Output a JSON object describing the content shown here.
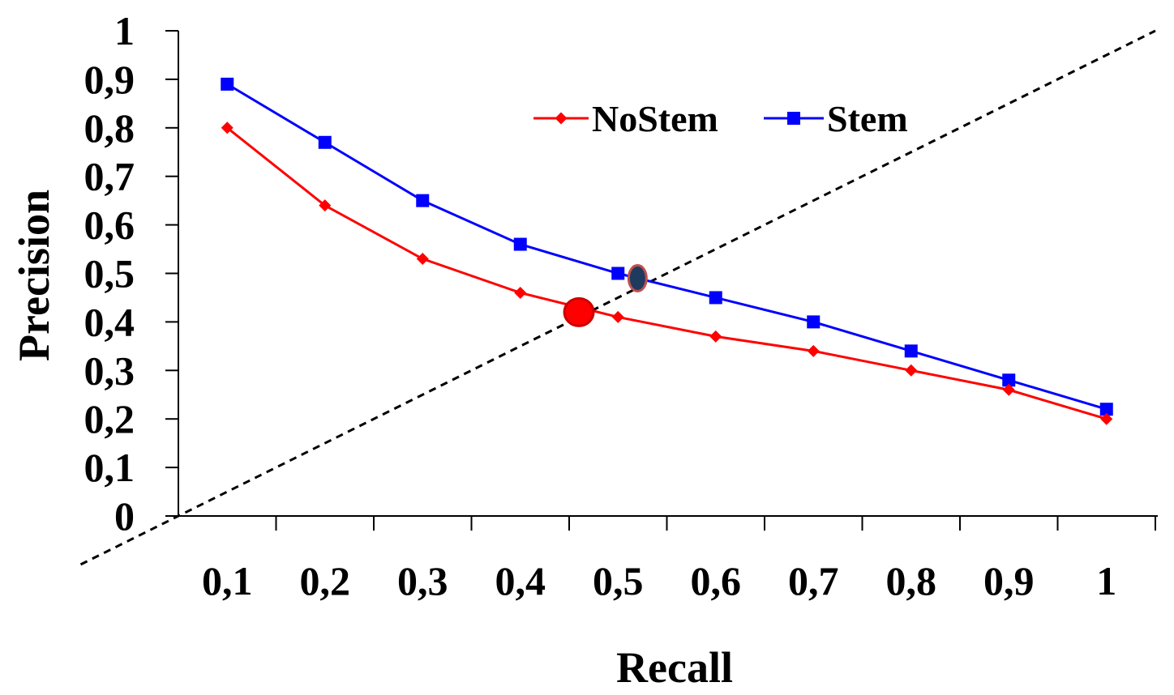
{
  "chart_data": {
    "type": "line",
    "title": "",
    "xlabel": "Recall",
    "ylabel": "Precision",
    "xlim": [
      0,
      1
    ],
    "ylim": [
      0,
      1
    ],
    "categories": [
      "0,1",
      "0,2",
      "0,3",
      "0,4",
      "0,5",
      "0,6",
      "0,7",
      "0,8",
      "0,9",
      "1"
    ],
    "y_ticks": [
      "0",
      "0,1",
      "0,2",
      "0,3",
      "0,4",
      "0,5",
      "0,6",
      "0,7",
      "0,8",
      "0,9",
      "1"
    ],
    "grid": false,
    "legend_position": "top-center",
    "series": [
      {
        "name": "NoStem",
        "color": "#ff0000",
        "marker": "diamond",
        "values": [
          0.8,
          0.64,
          0.53,
          0.46,
          0.41,
          0.37,
          0.34,
          0.3,
          0.26,
          0.2
        ]
      },
      {
        "name": "Stem",
        "color": "#0000ff",
        "marker": "square",
        "values": [
          0.89,
          0.77,
          0.65,
          0.56,
          0.5,
          0.45,
          0.4,
          0.34,
          0.28,
          0.22
        ]
      }
    ],
    "reference_line": {
      "style": "dashed",
      "color": "#000000",
      "from": [
        -0.1,
        -0.1
      ],
      "to": [
        1.0,
        1.0
      ]
    },
    "highlights": [
      {
        "series": "NoStem",
        "x": 0.41,
        "y": 0.42,
        "color": "#ff0000"
      },
      {
        "series": "Stem",
        "x": 0.47,
        "y": 0.49,
        "color": "#1f3a5f"
      }
    ]
  }
}
